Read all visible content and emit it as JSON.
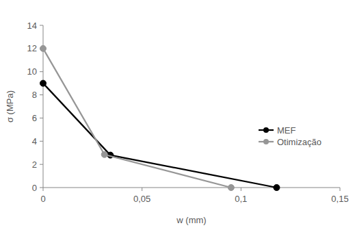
{
  "chart_data": {
    "type": "line",
    "x_label": "w (mm)",
    "y_label": "σ (MPa)",
    "xlim": [
      0,
      0.15
    ],
    "xticks": [
      0,
      {
        "value": 0.05,
        "label": "0,05"
      },
      {
        "value": 0.1,
        "label": "0,1"
      },
      {
        "value": 0.15,
        "label": "0,15"
      }
    ],
    "ylim": [
      0,
      14
    ],
    "yticks": [
      0,
      2,
      4,
      6,
      8,
      10,
      12,
      14
    ],
    "grid": false,
    "legend": "right",
    "series": [
      {
        "name": "MEF",
        "color": "#000000",
        "marker": "circle",
        "x": [
          0,
          0.034,
          0.118
        ],
        "values": [
          9,
          2.8,
          0
        ]
      },
      {
        "name": "Otimização",
        "color": "#969696",
        "marker": "circle",
        "x": [
          0,
          0.031,
          0.095
        ],
        "values": [
          12,
          2.85,
          0
        ]
      }
    ]
  }
}
